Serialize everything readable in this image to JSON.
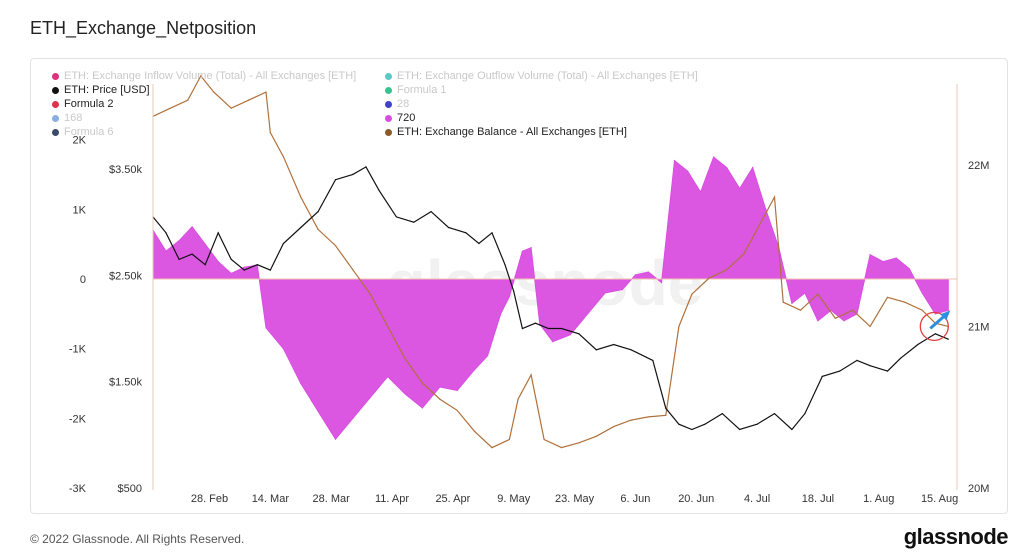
{
  "title": "ETH_Exchange_Netposition",
  "footer": {
    "copyright": "© 2022 Glassnode. All Rights Reserved.",
    "logo": "glassnode"
  },
  "watermark": "glassnode",
  "colors": {
    "netposition": "#d94ee0",
    "price": "#111111",
    "balance": "#b0703a",
    "grid": "#eeeeee",
    "annotation_circle": "#e04040",
    "annotation_arrow": "#2d8fe0"
  },
  "legend": [
    {
      "label": "ETH: Exchange Inflow Volume (Total) - All Exchanges [ETH]",
      "color": "#e0307a",
      "faded": true
    },
    {
      "label": "ETH: Exchange Outflow Volume (Total) - All Exchanges [ETH]",
      "color": "#5cc8c8",
      "faded": true
    },
    {
      "label": "ETH: Price [USD]",
      "color": "#111111",
      "faded": false
    },
    {
      "label": "Formula 1",
      "color": "#38c38f",
      "faded": true
    },
    {
      "label": "Formula 2",
      "color": "#e0304a",
      "faded": false
    },
    {
      "label": "28",
      "color": "#4040c8",
      "faded": true
    },
    {
      "label": "168",
      "color": "#8aaee0",
      "faded": true
    },
    {
      "label": "720",
      "color": "#d94ee0",
      "faded": false
    },
    {
      "label": "Formula 6",
      "color": "#3a4a6a",
      "faded": true
    },
    {
      "label": "ETH: Exchange Balance - All Exchanges [ETH]",
      "color": "#8a5a2a",
      "faded": false
    }
  ],
  "chart_data": {
    "type": "area",
    "x_axis": {
      "tick_labels": [
        "28. Feb",
        "14. Mar",
        "28. Mar",
        "11. Apr",
        "25. Apr",
        "9. May",
        "23. May",
        "6. Jun",
        "20. Jun",
        "4. Jul",
        "18. Jul",
        "1. Aug",
        "15. Aug"
      ],
      "start": "2022-02-15",
      "end": "2022-08-19"
    },
    "left_axis": {
      "ticks": [
        2000,
        1000,
        0,
        -1000,
        -2000,
        -3000
      ],
      "tick_labels": [
        "2K",
        "1K",
        "0",
        "-1K",
        "-2K",
        "-3K"
      ],
      "range": [
        -3000,
        2800
      ]
    },
    "price_axis": {
      "ticks": [
        3500,
        2500,
        1500,
        500
      ],
      "tick_labels": [
        "$3.50k",
        "$2.50k",
        "$1.50k",
        "$500"
      ],
      "range": [
        500,
        4300
      ]
    },
    "right_axis": {
      "ticks": [
        22000000,
        21000000,
        20000000
      ],
      "tick_labels": [
        "22M",
        "21M",
        "20M"
      ],
      "range": [
        20000000,
        22500000
      ]
    },
    "series": [
      {
        "name": "720",
        "axis": "left",
        "points": [
          [
            "2022-02-15",
            700
          ],
          [
            "2022-02-18",
            400
          ],
          [
            "2022-02-21",
            550
          ],
          [
            "2022-02-24",
            750
          ],
          [
            "2022-02-27",
            500
          ],
          [
            "2022-03-02",
            250
          ],
          [
            "2022-03-05",
            80
          ],
          [
            "2022-03-08",
            170
          ],
          [
            "2022-03-11",
            200
          ],
          [
            "2022-03-13",
            -700
          ],
          [
            "2022-03-17",
            -1000
          ],
          [
            "2022-03-21",
            -1500
          ],
          [
            "2022-03-25",
            -1900
          ],
          [
            "2022-03-29",
            -2300
          ],
          [
            "2022-04-02",
            -2000
          ],
          [
            "2022-04-06",
            -1700
          ],
          [
            "2022-04-10",
            -1400
          ],
          [
            "2022-04-14",
            -1650
          ],
          [
            "2022-04-18",
            -1850
          ],
          [
            "2022-04-22",
            -1550
          ],
          [
            "2022-04-26",
            -1600
          ],
          [
            "2022-04-30",
            -1300
          ],
          [
            "2022-05-03",
            -1100
          ],
          [
            "2022-05-06",
            -500
          ],
          [
            "2022-05-08",
            -250
          ],
          [
            "2022-05-11",
            400
          ],
          [
            "2022-05-13",
            450
          ],
          [
            "2022-05-15",
            -650
          ],
          [
            "2022-05-18",
            -900
          ],
          [
            "2022-05-22",
            -800
          ],
          [
            "2022-05-26",
            -500
          ],
          [
            "2022-05-30",
            -200
          ],
          [
            "2022-06-03",
            -150
          ],
          [
            "2022-06-06",
            60
          ],
          [
            "2022-06-09",
            100
          ],
          [
            "2022-06-12",
            -50
          ],
          [
            "2022-06-15",
            1700
          ],
          [
            "2022-06-18",
            1550
          ],
          [
            "2022-06-21",
            1250
          ],
          [
            "2022-06-24",
            1750
          ],
          [
            "2022-06-27",
            1600
          ],
          [
            "2022-06-30",
            1300
          ],
          [
            "2022-07-03",
            1600
          ],
          [
            "2022-07-06",
            1000
          ],
          [
            "2022-07-09",
            450
          ],
          [
            "2022-07-12",
            -350
          ],
          [
            "2022-07-15",
            -200
          ],
          [
            "2022-07-18",
            -600
          ],
          [
            "2022-07-21",
            -450
          ],
          [
            "2022-07-24",
            -600
          ],
          [
            "2022-07-27",
            -500
          ],
          [
            "2022-07-30",
            350
          ],
          [
            "2022-08-02",
            250
          ],
          [
            "2022-08-05",
            300
          ],
          [
            "2022-08-08",
            150
          ],
          [
            "2022-08-11",
            -200
          ],
          [
            "2022-08-14",
            -500
          ],
          [
            "2022-08-17",
            -450
          ]
        ]
      },
      {
        "name": "ETH: Price [USD]",
        "axis": "price",
        "points": [
          [
            "2022-02-15",
            3050
          ],
          [
            "2022-02-18",
            2900
          ],
          [
            "2022-02-21",
            2650
          ],
          [
            "2022-02-24",
            2700
          ],
          [
            "2022-02-27",
            2600
          ],
          [
            "2022-03-02",
            2900
          ],
          [
            "2022-03-05",
            2650
          ],
          [
            "2022-03-08",
            2550
          ],
          [
            "2022-03-11",
            2600
          ],
          [
            "2022-03-14",
            2550
          ],
          [
            "2022-03-17",
            2800
          ],
          [
            "2022-03-21",
            2950
          ],
          [
            "2022-03-25",
            3100
          ],
          [
            "2022-03-29",
            3400
          ],
          [
            "2022-04-02",
            3450
          ],
          [
            "2022-04-05",
            3520
          ],
          [
            "2022-04-08",
            3300
          ],
          [
            "2022-04-12",
            3050
          ],
          [
            "2022-04-16",
            3000
          ],
          [
            "2022-04-20",
            3100
          ],
          [
            "2022-04-24",
            2950
          ],
          [
            "2022-04-28",
            2900
          ],
          [
            "2022-05-01",
            2800
          ],
          [
            "2022-05-04",
            2900
          ],
          [
            "2022-05-07",
            2600
          ],
          [
            "2022-05-09",
            2350
          ],
          [
            "2022-05-11",
            2000
          ],
          [
            "2022-05-14",
            2050
          ],
          [
            "2022-05-17",
            2000
          ],
          [
            "2022-05-20",
            2000
          ],
          [
            "2022-05-24",
            1950
          ],
          [
            "2022-05-28",
            1800
          ],
          [
            "2022-06-01",
            1850
          ],
          [
            "2022-06-05",
            1800
          ],
          [
            "2022-06-10",
            1700
          ],
          [
            "2022-06-13",
            1250
          ],
          [
            "2022-06-16",
            1100
          ],
          [
            "2022-06-19",
            1050
          ],
          [
            "2022-06-22",
            1100
          ],
          [
            "2022-06-26",
            1200
          ],
          [
            "2022-06-30",
            1050
          ],
          [
            "2022-07-04",
            1100
          ],
          [
            "2022-07-08",
            1200
          ],
          [
            "2022-07-12",
            1050
          ],
          [
            "2022-07-15",
            1200
          ],
          [
            "2022-07-19",
            1550
          ],
          [
            "2022-07-23",
            1600
          ],
          [
            "2022-07-27",
            1700
          ],
          [
            "2022-07-30",
            1650
          ],
          [
            "2022-08-03",
            1600
          ],
          [
            "2022-08-06",
            1720
          ],
          [
            "2022-08-10",
            1850
          ],
          [
            "2022-08-14",
            1950
          ],
          [
            "2022-08-17",
            1900
          ]
        ]
      },
      {
        "name": "ETH: Exchange Balance - All Exchanges [ETH]",
        "axis": "right",
        "points": [
          [
            "2022-02-15",
            22300000
          ],
          [
            "2022-02-19",
            22350000
          ],
          [
            "2022-02-23",
            22400000
          ],
          [
            "2022-02-26",
            22550000
          ],
          [
            "2022-03-01",
            22450000
          ],
          [
            "2022-03-05",
            22350000
          ],
          [
            "2022-03-09",
            22400000
          ],
          [
            "2022-03-13",
            22450000
          ],
          [
            "2022-03-14",
            22200000
          ],
          [
            "2022-03-17",
            22050000
          ],
          [
            "2022-03-21",
            21800000
          ],
          [
            "2022-03-25",
            21600000
          ],
          [
            "2022-03-29",
            21500000
          ],
          [
            "2022-04-02",
            21350000
          ],
          [
            "2022-04-06",
            21200000
          ],
          [
            "2022-04-10",
            21000000
          ],
          [
            "2022-04-14",
            20800000
          ],
          [
            "2022-04-18",
            20650000
          ],
          [
            "2022-04-22",
            20550000
          ],
          [
            "2022-04-26",
            20480000
          ],
          [
            "2022-04-30",
            20350000
          ],
          [
            "2022-05-04",
            20250000
          ],
          [
            "2022-05-08",
            20300000
          ],
          [
            "2022-05-10",
            20550000
          ],
          [
            "2022-05-13",
            20700000
          ],
          [
            "2022-05-16",
            20300000
          ],
          [
            "2022-05-20",
            20250000
          ],
          [
            "2022-05-24",
            20280000
          ],
          [
            "2022-05-28",
            20320000
          ],
          [
            "2022-06-01",
            20380000
          ],
          [
            "2022-06-05",
            20420000
          ],
          [
            "2022-06-09",
            20440000
          ],
          [
            "2022-06-13",
            20450000
          ],
          [
            "2022-06-16",
            21000000
          ],
          [
            "2022-06-19",
            21200000
          ],
          [
            "2022-06-23",
            21300000
          ],
          [
            "2022-06-27",
            21350000
          ],
          [
            "2022-07-01",
            21450000
          ],
          [
            "2022-07-05",
            21650000
          ],
          [
            "2022-07-08",
            21800000
          ],
          [
            "2022-07-10",
            21150000
          ],
          [
            "2022-07-14",
            21100000
          ],
          [
            "2022-07-18",
            21200000
          ],
          [
            "2022-07-22",
            21050000
          ],
          [
            "2022-07-26",
            21100000
          ],
          [
            "2022-07-30",
            21000000
          ],
          [
            "2022-08-03",
            21180000
          ],
          [
            "2022-08-07",
            21150000
          ],
          [
            "2022-08-11",
            21100000
          ],
          [
            "2022-08-14",
            21020000
          ],
          [
            "2022-08-17",
            21000000
          ]
        ]
      }
    ],
    "annotations": [
      "circle around latest exchange balance",
      "arrow pointing upward at latest 720 value"
    ]
  }
}
